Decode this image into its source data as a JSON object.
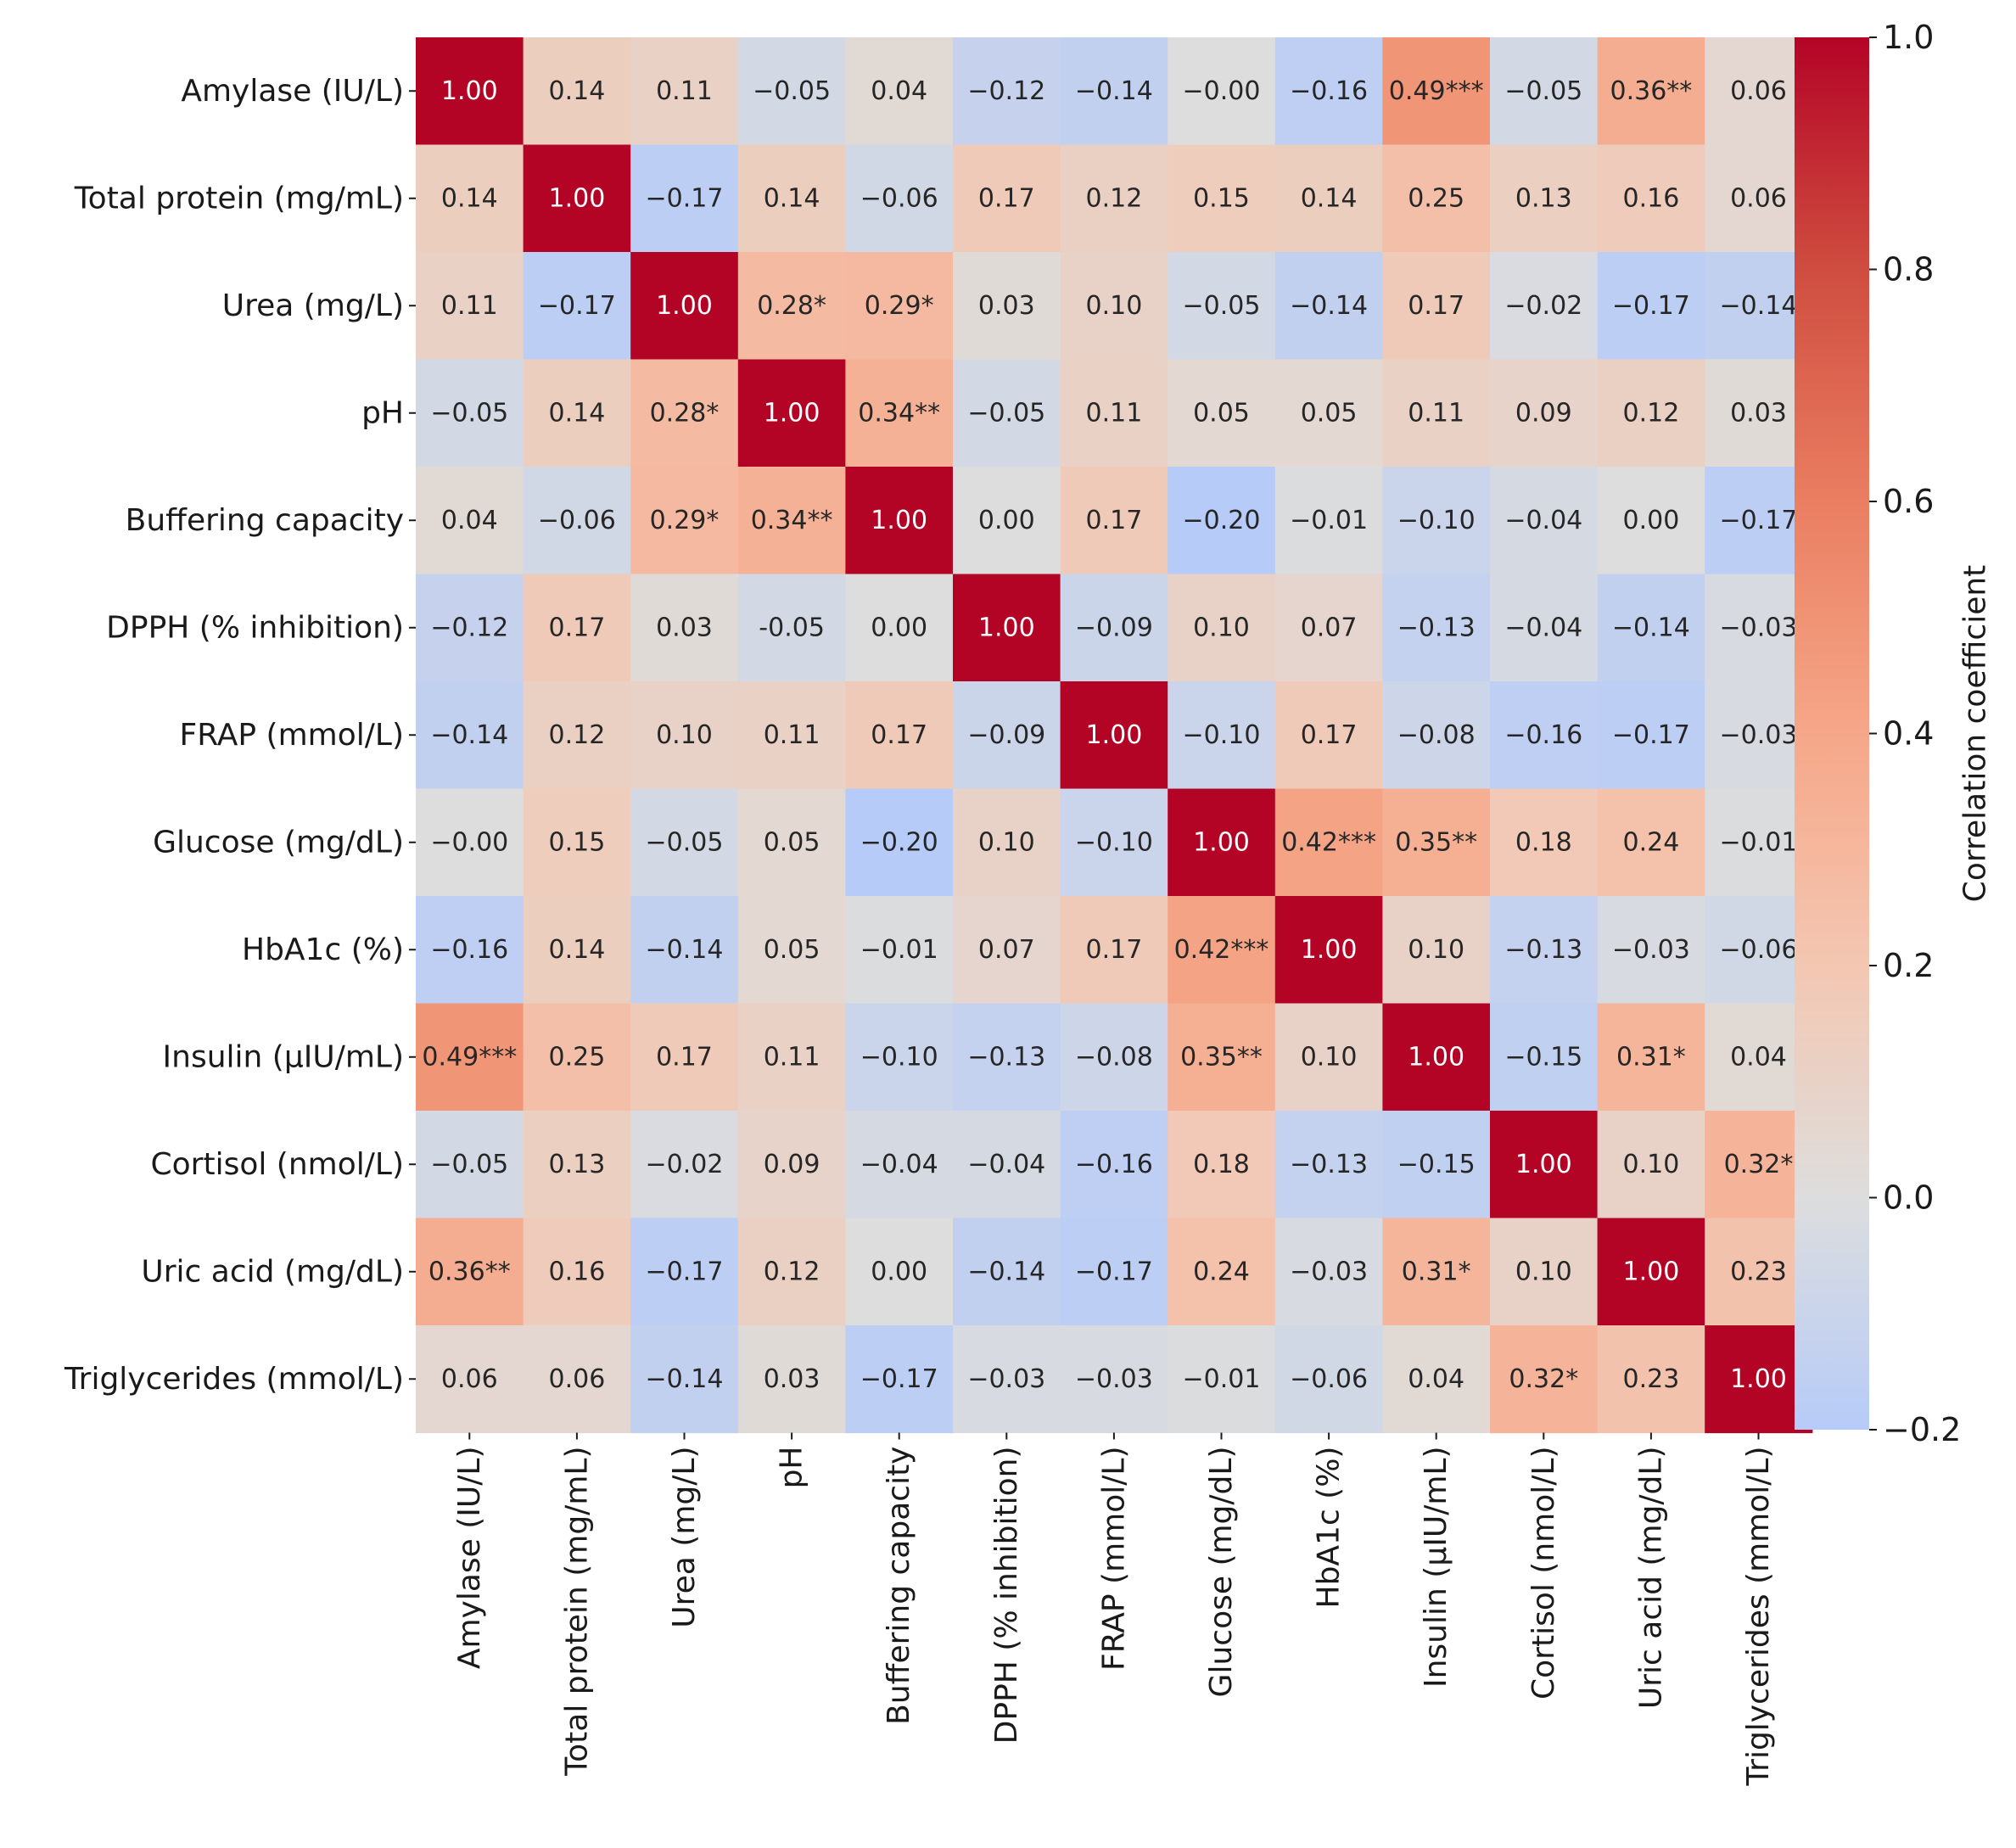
{
  "chart_data": {
    "type": "heatmap",
    "title": "",
    "rows": [
      "Amylase (IU/L)",
      "Total protein (mg/mL)",
      "Urea (mg/L)",
      "pH",
      "Buffering capacity",
      "DPPH (% inhibition)",
      "FRAP (mmol/L)",
      "Glucose (mg/dL)",
      "HbA1c (%)",
      "Insulin (µIU/mL)",
      "Cortisol (nmol/L)",
      "Uric acid (mg/dL)",
      "Triglycerides (mmol/L)"
    ],
    "columns": [
      "Amylase (IU/L)",
      "Total protein (mg/mL)",
      "Urea (mg/L)",
      "pH",
      "Buffering capacity",
      "DPPH (% inhibition)",
      "FRAP (mmol/L)",
      "Glucose (mg/dL)",
      "HbA1c (%)",
      "Insulin (µIU/mL)",
      "Cortisol (nmol/L)",
      "Uric acid (mg/dL)",
      "Triglycerides (mmol/L)"
    ],
    "values": [
      [
        1.0,
        0.14,
        0.11,
        -0.05,
        0.04,
        -0.12,
        -0.14,
        -0.0,
        -0.16,
        0.49,
        -0.05,
        0.36,
        0.06
      ],
      [
        0.14,
        1.0,
        -0.17,
        0.14,
        -0.06,
        0.17,
        0.12,
        0.15,
        0.14,
        0.25,
        0.13,
        0.16,
        0.06
      ],
      [
        0.11,
        -0.17,
        1.0,
        0.28,
        0.29,
        0.03,
        0.1,
        -0.05,
        -0.14,
        0.17,
        -0.02,
        -0.17,
        -0.14
      ],
      [
        -0.05,
        0.14,
        0.28,
        1.0,
        0.34,
        -0.05,
        0.11,
        0.05,
        0.05,
        0.11,
        0.09,
        0.12,
        0.03
      ],
      [
        0.04,
        -0.06,
        0.29,
        0.34,
        1.0,
        0.0,
        0.17,
        -0.2,
        -0.01,
        -0.1,
        -0.04,
        0.0,
        -0.17
      ],
      [
        -0.12,
        0.17,
        0.03,
        -0.05,
        0.0,
        1.0,
        -0.09,
        0.1,
        0.07,
        -0.13,
        -0.04,
        -0.14,
        -0.03
      ],
      [
        -0.14,
        0.12,
        0.1,
        0.11,
        0.17,
        -0.09,
        1.0,
        -0.1,
        0.17,
        -0.08,
        -0.16,
        -0.17,
        -0.03
      ],
      [
        -0.0,
        0.15,
        -0.05,
        0.05,
        -0.2,
        0.1,
        -0.1,
        1.0,
        0.42,
        0.35,
        0.18,
        0.24,
        -0.01
      ],
      [
        -0.16,
        0.14,
        -0.14,
        0.05,
        -0.01,
        0.07,
        0.17,
        0.42,
        1.0,
        0.1,
        -0.13,
        -0.03,
        -0.06
      ],
      [
        0.49,
        0.25,
        0.17,
        0.11,
        -0.1,
        -0.13,
        -0.08,
        0.35,
        0.1,
        1.0,
        -0.15,
        0.31,
        0.04
      ],
      [
        -0.05,
        0.13,
        -0.02,
        0.09,
        -0.04,
        -0.04,
        -0.16,
        0.18,
        -0.13,
        -0.15,
        1.0,
        0.1,
        0.32
      ],
      [
        0.36,
        0.16,
        -0.17,
        0.12,
        0.0,
        -0.14,
        -0.17,
        0.24,
        -0.03,
        0.31,
        0.1,
        1.0,
        0.23
      ],
      [
        0.06,
        0.06,
        -0.14,
        0.03,
        -0.17,
        -0.03,
        -0.03,
        -0.01,
        -0.06,
        0.04,
        0.32,
        0.23,
        1.0
      ]
    ],
    "annotations": [
      [
        "1.00",
        "0.14",
        "0.11",
        "−0.05",
        "0.04",
        "−0.12",
        "−0.14",
        "−0.00",
        "−0.16",
        "0.49***",
        "−0.05",
        "0.36**",
        "0.06"
      ],
      [
        "0.14",
        "1.00",
        "−0.17",
        "0.14",
        "−0.06",
        "0.17",
        "0.12",
        "0.15",
        "0.14",
        "0.25",
        "0.13",
        "0.16",
        "0.06"
      ],
      [
        "0.11",
        "−0.17",
        "1.00",
        "0.28*",
        "0.29*",
        "0.03",
        "0.10",
        "−0.05",
        "−0.14",
        "0.17",
        "−0.02",
        "−0.17",
        "−0.14"
      ],
      [
        "−0.05",
        "0.14",
        "0.28*",
        "1.00",
        "0.34**",
        "−0.05",
        "0.11",
        "0.05",
        "0.05",
        "0.11",
        "0.09",
        "0.12",
        "0.03"
      ],
      [
        "0.04",
        "−0.06",
        "0.29*",
        "0.34**",
        "1.00",
        "0.00",
        "0.17",
        "−0.20",
        "−0.01",
        "−0.10",
        "−0.04",
        "0.00",
        "−0.17"
      ],
      [
        "−0.12",
        "0.17",
        "0.03",
        "-0.05",
        "0.00",
        "1.00",
        "−0.09",
        "0.10",
        "0.07",
        "−0.13",
        "−0.04",
        "−0.14",
        "−0.03"
      ],
      [
        "−0.14",
        "0.12",
        "0.10",
        "0.11",
        "0.17",
        "−0.09",
        "1.00",
        "−0.10",
        "0.17",
        "−0.08",
        "−0.16",
        "−0.17",
        "−0.03"
      ],
      [
        "−0.00",
        "0.15",
        "−0.05",
        "0.05",
        "−0.20",
        "0.10",
        "−0.10",
        "1.00",
        "0.42***",
        "0.35**",
        "0.18",
        "0.24",
        "−0.01"
      ],
      [
        "−0.16",
        "0.14",
        "−0.14",
        "0.05",
        "−0.01",
        "0.07",
        "0.17",
        "0.42***",
        "1.00",
        "0.10",
        "−0.13",
        "−0.03",
        "−0.06"
      ],
      [
        "0.49***",
        "0.25",
        "0.17",
        "0.11",
        "−0.10",
        "−0.13",
        "−0.08",
        "0.35**",
        "0.10",
        "1.00",
        "−0.15",
        "0.31*",
        "0.04"
      ],
      [
        "−0.05",
        "0.13",
        "−0.02",
        "0.09",
        "−0.04",
        "−0.04",
        "−0.16",
        "0.18",
        "−0.13",
        "−0.15",
        "1.00",
        "0.10",
        "0.32*"
      ],
      [
        "0.36**",
        "0.16",
        "−0.17",
        "0.12",
        "0.00",
        "−0.14",
        "−0.17",
        "0.24",
        "−0.03",
        "0.31*",
        "0.10",
        "1.00",
        "0.23"
      ],
      [
        "0.06",
        "0.06",
        "−0.14",
        "0.03",
        "−0.17",
        "−0.03",
        "−0.03",
        "−0.01",
        "−0.06",
        "0.04",
        "0.32*",
        "0.23",
        "1.00"
      ]
    ],
    "colormap": "coolwarm",
    "center": 0.0,
    "vmin": -0.2,
    "vmax": 1.0,
    "colorbar": {
      "label": "Correlation coefficient",
      "ticks": [
        -0.2,
        0.0,
        0.2,
        0.4,
        0.6,
        0.8,
        1.0
      ],
      "tick_labels": [
        "−0.2",
        "0.0",
        "0.2",
        "0.4",
        "0.6",
        "0.8",
        "1.0"
      ]
    }
  }
}
